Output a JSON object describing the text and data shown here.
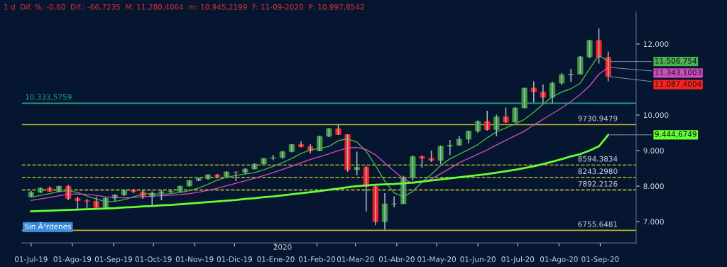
{
  "chart_data": {
    "type": "candlestick",
    "title": "1 d  Dif. %: -0,60  Dif.: -66,7235  M: 11.280,4064  m: 10.945,2199  F: 11-09-2020  P: 10.997,8542",
    "x": [
      "2019-07-01",
      "2019-07-08",
      "2019-07-15",
      "2019-07-22",
      "2019-07-29",
      "2019-08-05",
      "2019-08-12",
      "2019-08-19",
      "2019-08-26",
      "2019-09-02",
      "2019-09-09",
      "2019-09-16",
      "2019-09-23",
      "2019-09-30",
      "2019-10-07",
      "2019-10-14",
      "2019-10-21",
      "2019-10-28",
      "2019-11-04",
      "2019-11-11",
      "2019-11-18",
      "2019-11-25",
      "2019-12-02",
      "2019-12-09",
      "2019-12-16",
      "2019-12-23",
      "2019-12-30",
      "2020-01-06",
      "2020-01-13",
      "2020-01-20",
      "2020-01-27",
      "2020-02-03",
      "2020-02-10",
      "2020-02-17",
      "2020-02-24",
      "2020-03-02",
      "2020-03-09",
      "2020-03-16",
      "2020-03-23",
      "2020-03-30",
      "2020-04-06",
      "2020-04-13",
      "2020-04-20",
      "2020-04-27",
      "2020-05-04",
      "2020-05-11",
      "2020-05-18",
      "2020-05-25",
      "2020-06-01",
      "2020-06-08",
      "2020-06-15",
      "2020-06-22",
      "2020-06-29",
      "2020-07-06",
      "2020-07-13",
      "2020-07-20",
      "2020-07-27",
      "2020-08-03",
      "2020-08-10",
      "2020-08-17",
      "2020-08-24",
      "2020-08-31",
      "2020-09-07"
    ],
    "ohlc": [
      [
        7700,
        7860,
        7680,
        7826
      ],
      [
        7826,
        7960,
        7800,
        7943
      ],
      [
        7943,
        7990,
        7840,
        7853
      ],
      [
        7853,
        8010,
        7830,
        7996
      ],
      [
        7996,
        8030,
        7600,
        7650
      ],
      [
        7650,
        7700,
        7330,
        7590
      ],
      [
        7590,
        7640,
        7380,
        7570
      ],
      [
        7570,
        7700,
        7390,
        7400
      ],
      [
        7400,
        7680,
        7380,
        7660
      ],
      [
        7660,
        7770,
        7570,
        7750
      ],
      [
        7750,
        7900,
        7720,
        7880
      ],
      [
        7880,
        7920,
        7800,
        7840
      ],
      [
        7840,
        7880,
        7640,
        7700
      ],
      [
        7700,
        7850,
        7460,
        7800
      ],
      [
        7800,
        7880,
        7600,
        7840
      ],
      [
        7840,
        7910,
        7800,
        7850
      ],
      [
        7850,
        8010,
        7830,
        8000
      ],
      [
        8000,
        8170,
        7990,
        8160
      ],
      [
        8160,
        8230,
        8140,
        8210
      ],
      [
        8210,
        8330,
        8180,
        8320
      ],
      [
        8320,
        8340,
        8220,
        8270
      ],
      [
        8270,
        8420,
        8260,
        8400
      ],
      [
        8400,
        8410,
        8140,
        8390
      ],
      [
        8390,
        8500,
        8340,
        8480
      ],
      [
        8480,
        8640,
        8470,
        8620
      ],
      [
        8620,
        8780,
        8620,
        8780
      ],
      [
        8780,
        8880,
        8730,
        8800
      ],
      [
        8800,
        8990,
        8770,
        8970
      ],
      [
        8970,
        9180,
        8950,
        9170
      ],
      [
        9170,
        9260,
        9090,
        9110
      ],
      [
        9110,
        9180,
        8920,
        8990
      ],
      [
        8990,
        9420,
        8980,
        9400
      ],
      [
        9400,
        9630,
        9380,
        9620
      ],
      [
        9620,
        9736,
        9440,
        9450
      ],
      [
        9450,
        9460,
        8400,
        8460
      ],
      [
        8460,
        8970,
        8300,
        8530
      ],
      [
        8530,
        8560,
        7290,
        7990
      ],
      [
        7990,
        8030,
        6900,
        7000
      ],
      [
        7000,
        7800,
        6771,
        7500
      ],
      [
        7500,
        7710,
        7400,
        7500
      ],
      [
        7500,
        8290,
        7500,
        8230
      ],
      [
        8230,
        8860,
        8150,
        8830
      ],
      [
        8830,
        8860,
        8520,
        8780
      ],
      [
        8780,
        9000,
        8680,
        8720
      ],
      [
        8720,
        9140,
        8620,
        9120
      ],
      [
        9120,
        9300,
        8870,
        9150
      ],
      [
        9150,
        9410,
        9140,
        9320
      ],
      [
        9320,
        9560,
        9200,
        9550
      ],
      [
        9550,
        9850,
        9500,
        9820
      ],
      [
        9820,
        10120,
        9560,
        9590
      ],
      [
        9590,
        10010,
        9400,
        9950
      ],
      [
        9950,
        10210,
        9780,
        9800
      ],
      [
        9800,
        10230,
        9790,
        10200
      ],
      [
        10200,
        10770,
        10190,
        10760
      ],
      [
        10760,
        10950,
        10350,
        10650
      ],
      [
        10650,
        10860,
        10330,
        10500
      ],
      [
        10500,
        10940,
        10320,
        10900
      ],
      [
        10900,
        11180,
        10850,
        11130
      ],
      [
        11130,
        11300,
        10930,
        11150
      ],
      [
        11150,
        11660,
        11150,
        11640
      ],
      [
        11640,
        12120,
        11600,
        12100
      ],
      [
        12100,
        12439,
        11450,
        11630
      ],
      [
        11630,
        11790,
        10950,
        11087
      ]
    ],
    "series": [
      {
        "type": "line",
        "color": "#4caf50",
        "values": [
          7690,
          7740,
          7790,
          7850,
          7870,
          7820,
          7720,
          7640,
          7560,
          7570,
          7620,
          7700,
          7780,
          7790,
          7770,
          7790,
          7820,
          7870,
          7950,
          8050,
          8170,
          8250,
          8300,
          8340,
          8380,
          8460,
          8560,
          8660,
          8780,
          8920,
          9020,
          9060,
          9120,
          9280,
          9330,
          9240,
          8980,
          8580,
          8140,
          7810,
          7700,
          7850,
          8110,
          8330,
          8580,
          8770,
          8900,
          9030,
          9170,
          9360,
          9530,
          9640,
          9750,
          9880,
          10080,
          10300,
          10520,
          10650,
          10740,
          10900,
          11300,
          11680,
          11510
        ]
      },
      {
        "type": "line",
        "color": "#d04bc0",
        "values": [
          7600,
          7640,
          7680,
          7730,
          7770,
          7780,
          7770,
          7740,
          7700,
          7680,
          7670,
          7680,
          7700,
          7720,
          7730,
          7740,
          7760,
          7790,
          7830,
          7880,
          7940,
          8010,
          8080,
          8150,
          8220,
          8300,
          8380,
          8470,
          8560,
          8660,
          8750,
          8830,
          8910,
          9000,
          9070,
          9090,
          9030,
          8880,
          8650,
          8420,
          8200,
          8080,
          8110,
          8200,
          8350,
          8500,
          8660,
          8780,
          8900,
          9020,
          9160,
          9290,
          9420,
          9550,
          9720,
          9880,
          10040,
          10200,
          10380,
          10580,
          10820,
          11150,
          11340
        ]
      },
      {
        "type": "line",
        "color": "#66ff33",
        "values": [
          7290,
          7300,
          7310,
          7320,
          7330,
          7340,
          7350,
          7360,
          7370,
          7380,
          7400,
          7410,
          7430,
          7440,
          7460,
          7470,
          7490,
          7510,
          7530,
          7550,
          7570,
          7590,
          7610,
          7640,
          7660,
          7690,
          7710,
          7740,
          7770,
          7800,
          7830,
          7860,
          7900,
          7930,
          7970,
          8000,
          8020,
          8040,
          8050,
          8060,
          8080,
          8100,
          8130,
          8160,
          8190,
          8220,
          8250,
          8280,
          8310,
          8340,
          8380,
          8420,
          8460,
          8510,
          8560,
          8620,
          8690,
          8760,
          8840,
          8900,
          9000,
          9120,
          9440
        ]
      }
    ],
    "ref_lines": [
      {
        "axis": "y",
        "value": 10333.5759,
        "label": "10.333,5759",
        "color": "#1fa38a",
        "line_style": "solid"
      },
      {
        "axis": "y",
        "value": 9730.9479,
        "label": "9730.9479",
        "color": "#b5b52a",
        "line_style": "solid"
      },
      {
        "axis": "y",
        "value": 8594.3834,
        "label": "8594.3834",
        "color": "#d6d62a",
        "line_style": "dashed"
      },
      {
        "axis": "y",
        "value": 8243.298,
        "label": "8243.2980",
        "color": "#d6d62a",
        "line_style": "dashed"
      },
      {
        "axis": "y",
        "value": 7892.2126,
        "label": "7892.2126",
        "color": "#d6d62a",
        "line_style": "dashed"
      },
      {
        "axis": "y",
        "value": 6755.6481,
        "label": "6755.6481",
        "color": "#b5b52a",
        "line_style": "solid"
      }
    ],
    "annotations": [
      {
        "text": "11.506,754",
        "x": "2020-09-07",
        "y": 11506.754
      },
      {
        "text": "11.343,1003",
        "x": "2020-09-07",
        "y": 11343.1003
      },
      {
        "text": "11.087,4004",
        "x": "2020-09-07",
        "y": 11087.4004
      },
      {
        "text": "9.444,6749",
        "x": "2020-09-07",
        "y": 9444.6749
      },
      "Sin Ã³rdenes",
      "2020"
    ],
    "xlim": [
      "2019-06-24",
      "2020-09-28"
    ],
    "xticks": [
      {
        "value": "2019-07-01",
        "label": "01-Jul-19"
      },
      {
        "value": "2019-08-01",
        "label": "01-Ago-19"
      },
      {
        "value": "2019-09-01",
        "label": "01-Sep-19"
      },
      {
        "value": "2019-10-01",
        "label": "01-Oct-19"
      },
      {
        "value": "2019-11-01",
        "label": "01-Nov-19"
      },
      {
        "value": "2019-12-01",
        "label": "01-Dic-19"
      },
      {
        "value": "2020-01-01",
        "label": "01-Ene-20"
      },
      {
        "value": "2020-02-01",
        "label": "01-Feb-20"
      },
      {
        "value": "2020-03-01",
        "label": "01-Mar-20"
      },
      {
        "value": "2020-04-01",
        "label": "01-Abr-20"
      },
      {
        "value": "2020-05-01",
        "label": "01-May-20"
      },
      {
        "value": "2020-06-01",
        "label": "01-Jun-20"
      },
      {
        "value": "2020-07-01",
        "label": "01-Jul-20"
      },
      {
        "value": "2020-08-01",
        "label": "01-Ago-20"
      },
      {
        "value": "2020-09-01",
        "label": "01-Sep-20"
      }
    ],
    "ylim": [
      6400,
      12900
    ],
    "yticks": [
      {
        "value": 7000,
        "label": "7.000"
      },
      {
        "value": 8000,
        "label": "8.000"
      },
      {
        "value": 9000,
        "label": "9.000"
      },
      {
        "value": 10000,
        "label": "10.000"
      },
      {
        "value": 12000,
        "label": "12.000"
      }
    ],
    "grid": false,
    "legend": false
  }
}
